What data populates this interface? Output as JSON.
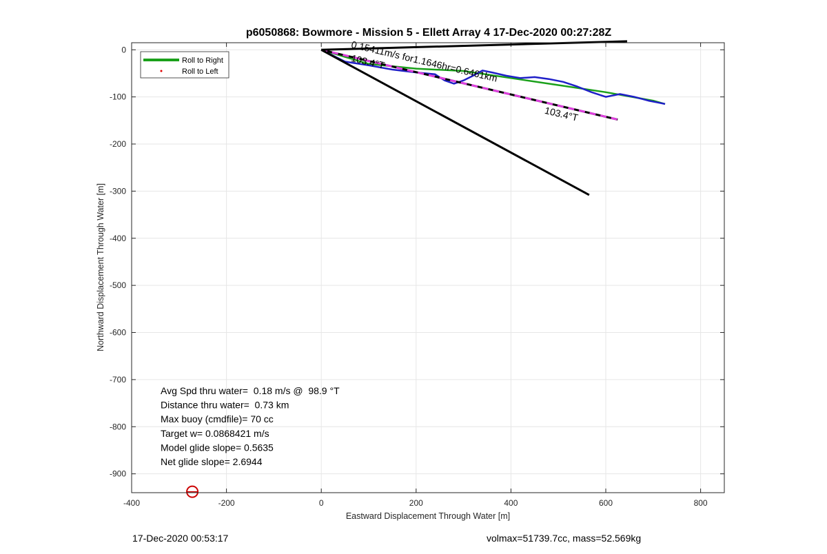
{
  "chart_data": {
    "type": "line",
    "title": "p6050868: Bowmore - Mission 5 - Ellett Array 4 17-Dec-2020 00:27:28Z",
    "xlabel": "Eastward Displacement Through Water [m]",
    "ylabel": "Northward Displacement Through Water [m]",
    "xlim": [
      -400,
      850
    ],
    "ylim": [
      -940,
      15
    ],
    "xticks": [
      -400,
      -200,
      0,
      200,
      400,
      600,
      800
    ],
    "yticks": [
      0,
      -100,
      -200,
      -300,
      -400,
      -500,
      -600,
      -700,
      -800,
      -900
    ],
    "grid": true,
    "legend": {
      "position": "top-left",
      "entries": [
        "Roll to Right",
        "Roll to Left"
      ]
    },
    "series": [
      {
        "name": "Roll to Right",
        "color": "#1aa01a",
        "style": "solid",
        "x": [
          0,
          100,
          200,
          300,
          400,
          500,
          600,
          700,
          725
        ],
        "y": [
          0,
          -30,
          -40,
          -45,
          -60,
          -75,
          -90,
          -108,
          -115
        ]
      },
      {
        "color": "#1f1fc8",
        "style": "solid",
        "x": [
          0,
          50,
          100,
          150,
          200,
          240,
          260,
          280,
          300,
          320,
          340,
          360,
          390,
          420,
          450,
          480,
          510,
          540,
          570,
          600,
          630,
          660,
          690,
          710,
          725
        ],
        "y": [
          0,
          -25,
          -33,
          -42,
          -48,
          -52,
          -65,
          -72,
          -65,
          -55,
          -44,
          -48,
          -55,
          -60,
          -58,
          -62,
          -68,
          -78,
          -90,
          -100,
          -94,
          -100,
          -108,
          -112,
          -115
        ]
      },
      {
        "color": "#e040e0",
        "style": "dashed-with-black",
        "x": [
          0,
          625
        ],
        "y": [
          0,
          -148
        ]
      },
      {
        "color": "#000000",
        "style": "solid",
        "x": [
          0,
          645
        ],
        "y": [
          0,
          18
        ]
      },
      {
        "color": "#000000",
        "style": "solid",
        "x": [
          0,
          565
        ],
        "y": [
          0,
          -308
        ]
      }
    ],
    "markers": [
      {
        "x": -272,
        "y": -938,
        "color": "#cc0000",
        "shape": "circle-open"
      }
    ],
    "annotations": [
      {
        "text": "0.15411m/s for1.1646hr=0.6461km",
        "x": 62,
        "y": 5,
        "rotate": 13.3
      },
      {
        "text": "103.4°T",
        "x": 62,
        "y": -24,
        "rotate": 13.3
      },
      {
        "text": "103.4°T",
        "x": 470,
        "y": -135,
        "rotate": 13.3
      }
    ],
    "stats": [
      "Avg Spd thru water=  0.18 m/s @  98.9 °T",
      "Distance thru water=  0.73 km",
      "Max buoy (cmdfile)= 70 cc",
      "Target w= 0.0868421 m/s",
      "Model glide slope= 0.5635",
      "Net glide slope= 2.6944"
    ]
  },
  "footer": {
    "left": "17-Dec-2020 00:53:17",
    "right": "volmax=51739.7cc, mass=52.569kg"
  }
}
